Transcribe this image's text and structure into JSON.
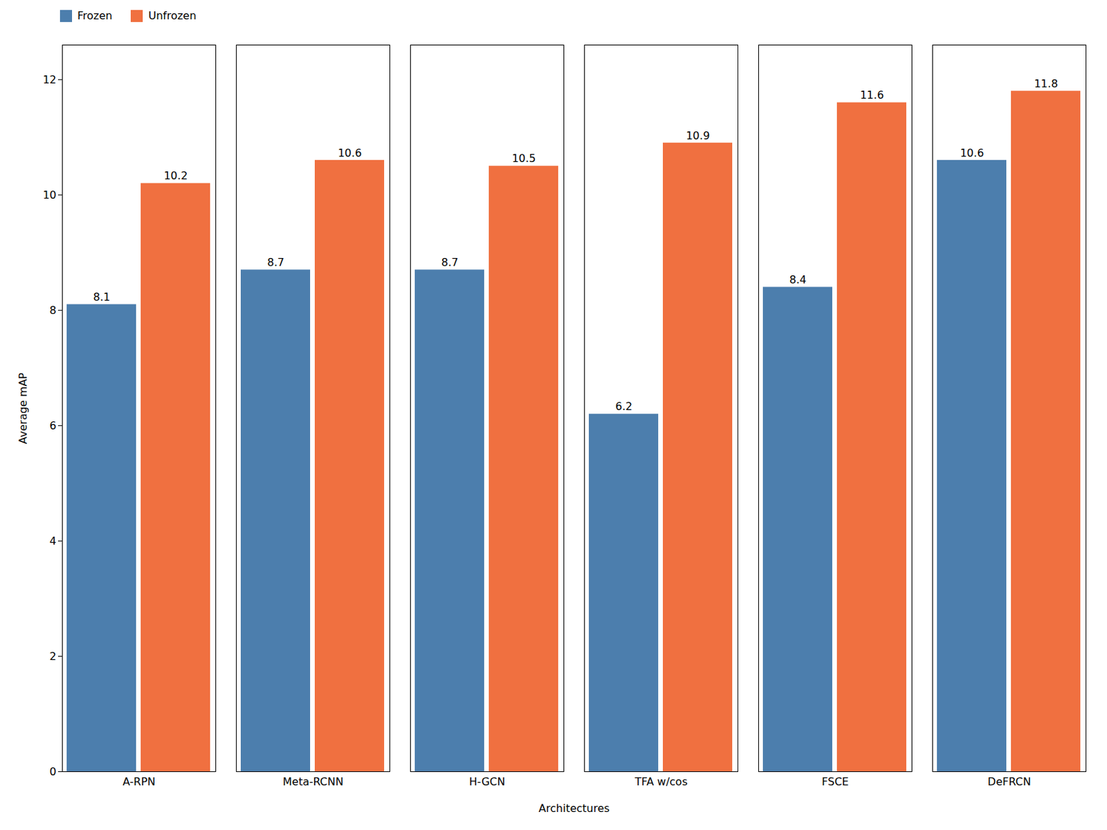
{
  "chart_data": {
    "type": "bar",
    "categories": [
      "A-RPN",
      "Meta-RCNN",
      "H-GCN",
      "TFA w/cos",
      "FSCE",
      "DeFRCN"
    ],
    "series": [
      {
        "name": "Frozen",
        "color": "#4C7EAD",
        "values": [
          8.1,
          8.7,
          8.7,
          6.2,
          8.4,
          10.6
        ]
      },
      {
        "name": "Unfrozen",
        "color": "#F07040",
        "values": [
          10.2,
          10.6,
          10.5,
          10.9,
          11.6,
          11.8
        ]
      }
    ],
    "xlabel": "Architectures",
    "ylabel": "Average mAP",
    "ylim": [
      0,
      12.6
    ],
    "yticks": [
      0,
      2,
      4,
      6,
      8,
      10,
      12
    ],
    "legend": "upper left",
    "data_labels": true,
    "grid": false
  }
}
